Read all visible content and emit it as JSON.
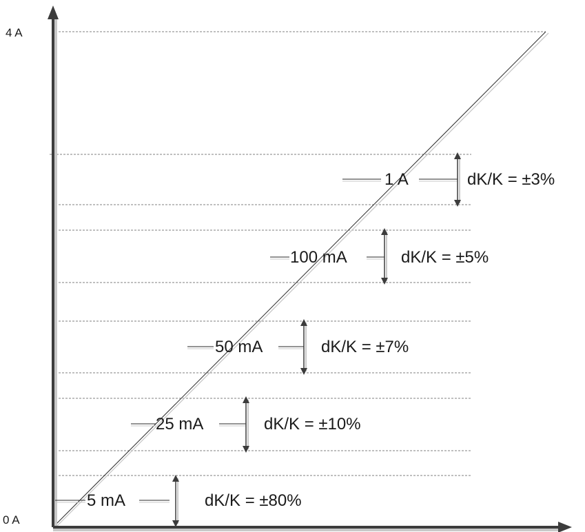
{
  "axis": {
    "y_top_label": "4 A",
    "y_bottom_label": "0 A"
  },
  "bands": [
    {
      "current": "5 mA",
      "tolerance": "dK/K = ±80%"
    },
    {
      "current": "25 mA",
      "tolerance": "dK/K = ±10%"
    },
    {
      "current": "50 mA",
      "tolerance": "dK/K = ±7%"
    },
    {
      "current": "100 mA",
      "tolerance": "dK/K = ±5%"
    },
    {
      "current": "1 A",
      "tolerance": "dK/K = ±3%"
    }
  ],
  "colors": {
    "axis": "#3c3c3c",
    "line": "#2a2a2a",
    "shadow": "#c8c8c8",
    "dashed": "#555555",
    "text": "#1a1a1a"
  }
}
